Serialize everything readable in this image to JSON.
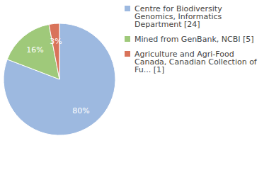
{
  "chart_data": {
    "type": "pie",
    "categories": [
      "Centre for Biodiversity Genomics, Informatics Department [24]",
      "Mined from GenBank, NCBI [5]",
      "Agriculture and Agri-Food Canada, Canadian Collection of Fu... [1]"
    ],
    "values": [
      80,
      16,
      3
    ],
    "value_labels": [
      "80%",
      "16%",
      "3%"
    ],
    "colors": [
      "#9db9e0",
      "#9fc97a",
      "#d9735a"
    ],
    "data_labels": true,
    "legend": "right"
  }
}
